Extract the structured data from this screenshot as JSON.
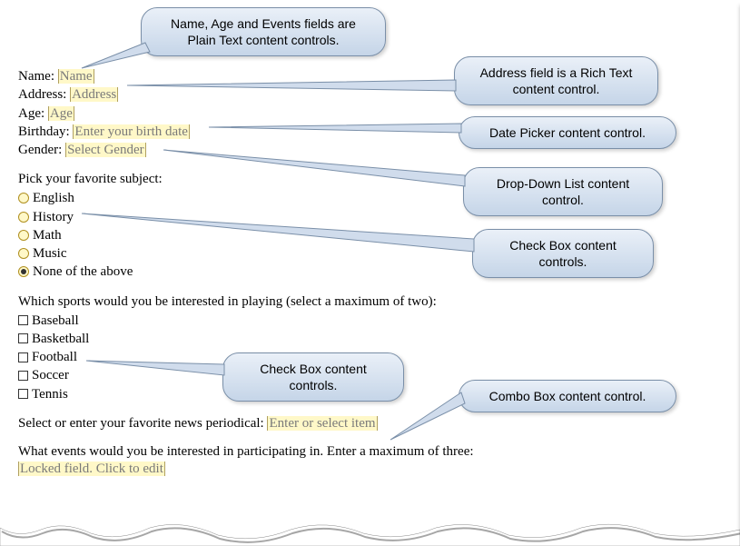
{
  "callouts": {
    "plaintext": "Name, Age and Events fields are\nPlain Text content controls.",
    "richtext": "Address field is a Rich Text\ncontent control.",
    "datepicker": "Date Picker content control.",
    "dropdown": "Drop-Down List content\ncontrol.",
    "checkbox1": "Check Box content\ncontrols.",
    "checkbox2": "Check Box content\ncontrols.",
    "combobox": "Combo Box content control."
  },
  "fields": {
    "name_label": "Name:  ",
    "name_value": "Name",
    "address_label": "Address:  ",
    "address_value": "Address",
    "age_label": "Age:  ",
    "age_value": "Age",
    "birthday_label": "Birthday:  ",
    "birthday_value": "Enter your birth date",
    "gender_label": "Gender:  ",
    "gender_value": "Select Gender"
  },
  "subject": {
    "prompt": "Pick your favorite subject:",
    "items": [
      "English",
      "History",
      "Math",
      "Music",
      "None of the above"
    ],
    "selected_index": 4
  },
  "sports": {
    "prompt": "Which sports would you be interested in playing (select a maximum of two):",
    "items": [
      "Baseball",
      "Basketball",
      "Football",
      "Soccer",
      "Tennis"
    ]
  },
  "periodical": {
    "prompt": "Select or enter your favorite news periodical:  ",
    "value": "Enter or select item"
  },
  "events": {
    "prompt": "What events would you be interested in participating in. Enter a maximum of three:",
    "value": "Locked field. Click to edit"
  },
  "style": {
    "callout_bg_top": "#eaf0f8",
    "callout_bg_bottom": "#c5d5e8",
    "callout_border": "#7a8fa8",
    "highlight_bg": "#fff8c8",
    "highlight_text": "#7a7a7a",
    "body_font": "Times New Roman",
    "callout_font": "Arial",
    "body_fontsize": 15,
    "callout_fontsize": 14
  }
}
